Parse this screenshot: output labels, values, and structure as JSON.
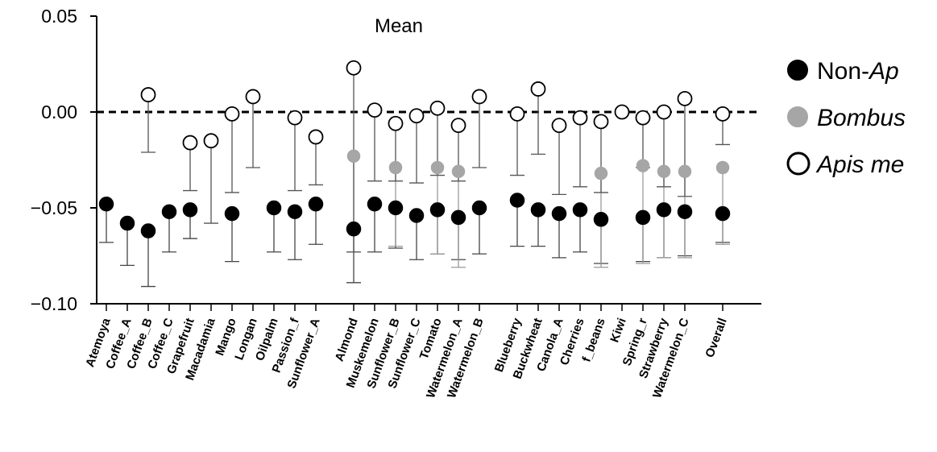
{
  "chart_data": {
    "type": "scatter",
    "title": "Mean",
    "xlabel": "",
    "ylabel": "",
    "ylim": [
      -0.1,
      0.05
    ],
    "yticks": [
      0.05,
      0.0,
      -0.05,
      -0.1
    ],
    "ytick_labels": [
      "0.05",
      "0.00",
      "−0.05",
      "−0.10"
    ],
    "reference_line": 0.0,
    "legend_position": "right",
    "colors": {
      "non_apis": "#000000",
      "bombus": "#a6a6a6",
      "apis": "#ffffff"
    },
    "categories": [
      "Atemoya",
      "Coffee_A",
      "Coffee_B",
      "Coffee_C",
      "Grapefruit",
      "Macadamia",
      "Mango",
      "Longan",
      "Oilpalm",
      "Passion_f",
      "Sunflower_A",
      "Almond",
      "Muskemelon",
      "Sunflower_B",
      "Sunflower_C",
      "Tomato",
      "Watermelon_A",
      "Watermelon_B",
      "Blueberry",
      "Buckwheat",
      "Canola_A",
      "Cherries",
      "f_beans",
      "Kiwi",
      "Spring_r",
      "Strawberry",
      "Watermelon_C",
      "Overall"
    ],
    "series": [
      {
        "name": "Non-Apis",
        "values": [
          -0.048,
          -0.058,
          -0.062,
          -0.052,
          -0.051,
          null,
          -0.053,
          null,
          -0.05,
          -0.052,
          -0.048,
          -0.061,
          -0.048,
          -0.05,
          -0.054,
          -0.051,
          -0.055,
          -0.05,
          -0.046,
          -0.051,
          -0.053,
          -0.051,
          -0.056,
          null,
          -0.055,
          -0.051,
          -0.052,
          -0.053
        ],
        "error_low": [
          -0.068,
          -0.08,
          -0.091,
          -0.073,
          -0.066,
          null,
          -0.078,
          null,
          -0.073,
          -0.077,
          -0.069,
          -0.089,
          -0.073,
          -0.071,
          -0.077,
          -0.074,
          -0.077,
          -0.074,
          -0.07,
          -0.07,
          -0.076,
          -0.073,
          -0.079,
          null,
          -0.078,
          -0.076,
          -0.075,
          -0.068
        ]
      },
      {
        "name": "Bombus",
        "values": [
          null,
          null,
          null,
          null,
          null,
          null,
          null,
          null,
          null,
          null,
          null,
          -0.023,
          null,
          -0.029,
          null,
          -0.029,
          -0.031,
          null,
          null,
          null,
          null,
          null,
          -0.032,
          null,
          -0.028,
          -0.031,
          -0.031,
          -0.029
        ],
        "error_low": [
          null,
          null,
          null,
          null,
          null,
          null,
          null,
          null,
          null,
          null,
          null,
          -0.073,
          null,
          -0.07,
          null,
          -0.074,
          -0.081,
          null,
          null,
          null,
          null,
          null,
          -0.081,
          null,
          -0.079,
          -0.076,
          -0.076,
          -0.069
        ]
      },
      {
        "name": "Apis mellifera",
        "values": [
          null,
          null,
          0.009,
          null,
          -0.016,
          -0.015,
          -0.001,
          0.008,
          null,
          -0.003,
          -0.013,
          0.023,
          0.001,
          -0.006,
          -0.002,
          0.002,
          -0.007,
          0.008,
          -0.001,
          0.012,
          -0.007,
          -0.003,
          -0.005,
          0.0,
          -0.003,
          0.0,
          0.007,
          -0.001
        ],
        "error_low": [
          null,
          null,
          -0.021,
          null,
          -0.041,
          -0.058,
          -0.042,
          -0.029,
          null,
          -0.041,
          -0.038,
          -0.073,
          -0.036,
          -0.036,
          -0.037,
          -0.033,
          -0.036,
          -0.029,
          -0.033,
          -0.022,
          -0.043,
          -0.039,
          -0.042,
          null,
          -0.029,
          -0.039,
          -0.044,
          -0.017
        ]
      }
    ]
  },
  "legend": {
    "non_apis_prefix": "Non-",
    "non_apis_italic": "Ap",
    "bombus": "Bombus",
    "apis": "Apis me"
  }
}
